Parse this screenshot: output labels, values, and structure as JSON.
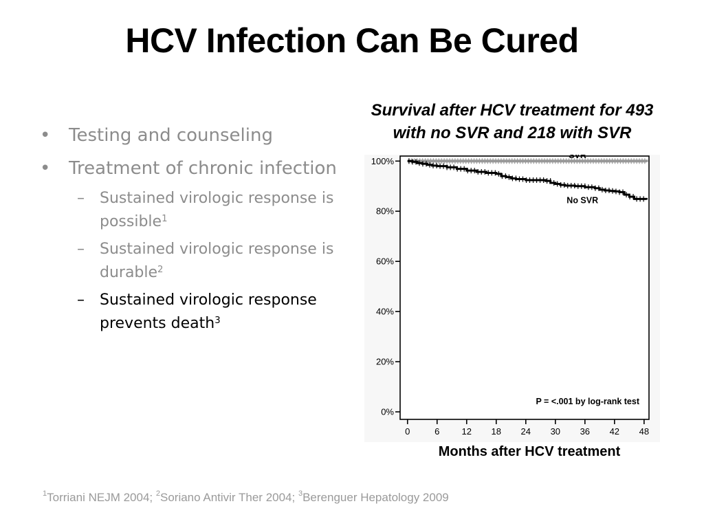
{
  "slide": {
    "title": "HCV Infection Can Be Cured",
    "bullets": [
      {
        "text": "Testing and counseling"
      },
      {
        "text": "Treatment of chronic infection"
      }
    ],
    "sub_bullets": [
      {
        "text": "Sustained virologic response is possible",
        "sup": "1"
      },
      {
        "text": "Sustained virologic response is durable",
        "sup": "2"
      },
      {
        "text": "Sustained virologic  response prevents death",
        "sup": "3"
      }
    ],
    "bullet_mark": "•",
    "sub_bullet_mark": "–",
    "footnote": {
      "refs": [
        {
          "sup": "1",
          "text": "Torriani NEJM 2004; "
        },
        {
          "sup": "2",
          "text": "Soriano Antivir Ther 2004; "
        },
        {
          "sup": "3",
          "text": "Berenguer Hepatology 2009"
        }
      ]
    }
  },
  "chart_data": {
    "type": "line",
    "title": "Survival after HCV treatment for 493 with no SVR and 218 with SVR",
    "xlabel": "Months after HCV treatment",
    "ylabel": "",
    "x_ticks": [
      0,
      6,
      12,
      18,
      24,
      30,
      36,
      42,
      48
    ],
    "y_ticks": [
      "0%",
      "20%",
      "40%",
      "60%",
      "80%",
      "100%"
    ],
    "xlim": [
      -1.5,
      49
    ],
    "ylim": [
      -3,
      102
    ],
    "annotation": "P = <.001 by log-rank test",
    "series": [
      {
        "name": "SVR",
        "color": "#999999",
        "step": true,
        "x": [
          0,
          48.5
        ],
        "y": [
          100,
          99.6
        ]
      },
      {
        "name": "No SVR",
        "color": "#000000",
        "step": true,
        "x": [
          0,
          1,
          2,
          3,
          4,
          5,
          6,
          8,
          10,
          12,
          14,
          16,
          18,
          19,
          20,
          21,
          22,
          24,
          28,
          29,
          30,
          31,
          32,
          34,
          36,
          38,
          39,
          40,
          41,
          42,
          43,
          44,
          45,
          46,
          48.5
        ],
        "y": [
          100,
          99.7,
          99.2,
          98.9,
          98.5,
          98.2,
          98,
          97.5,
          96.9,
          96.2,
          95.7,
          95.3,
          94.9,
          94,
          93.6,
          93.1,
          92.8,
          92.4,
          92.1,
          91.3,
          90.9,
          90.5,
          90.2,
          90,
          89.6,
          89.2,
          88.6,
          88.3,
          88.1,
          87.9,
          87.6,
          86.6,
          85.8,
          84.9,
          84.6
        ]
      }
    ],
    "series_label_colors": {
      "SVR": "#000000",
      "No SVR": "#000000"
    }
  }
}
